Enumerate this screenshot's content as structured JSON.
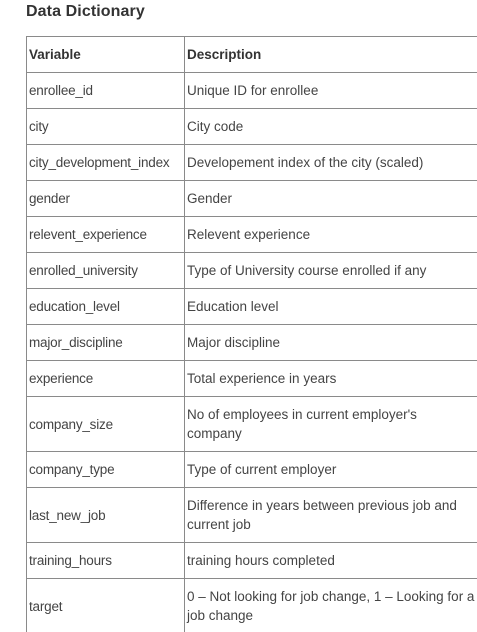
{
  "title": "Data Dictionary",
  "table": {
    "headers": [
      "Variable",
      "Description"
    ],
    "rows": [
      {
        "variable": "enrollee_id",
        "description": "Unique ID for enrollee"
      },
      {
        "variable": "city",
        "description": "City code"
      },
      {
        "variable": "city_development_index",
        "description": "Developement index of the city (scaled)"
      },
      {
        "variable": "gender",
        "description": "Gender"
      },
      {
        "variable": "relevent_experience",
        "description": "Relevent experience"
      },
      {
        "variable": "enrolled_university",
        "description": "Type of University course enrolled if any"
      },
      {
        "variable": "education_level",
        "description": "Education level"
      },
      {
        "variable": "major_discipline",
        "description": "Major discipline"
      },
      {
        "variable": "experience",
        "description": "Total experience in years"
      },
      {
        "variable": "company_size",
        "description": "No of employees in current employer's company"
      },
      {
        "variable": "company_type",
        "description": "Type of current employer"
      },
      {
        "variable": "last_new_job",
        "description": "Difference in years between previous job and current job"
      },
      {
        "variable": "training_hours",
        "description": "training hours completed"
      },
      {
        "variable": "target",
        "description": "0 – Not looking for job change, 1 – Looking for a job change"
      }
    ]
  }
}
